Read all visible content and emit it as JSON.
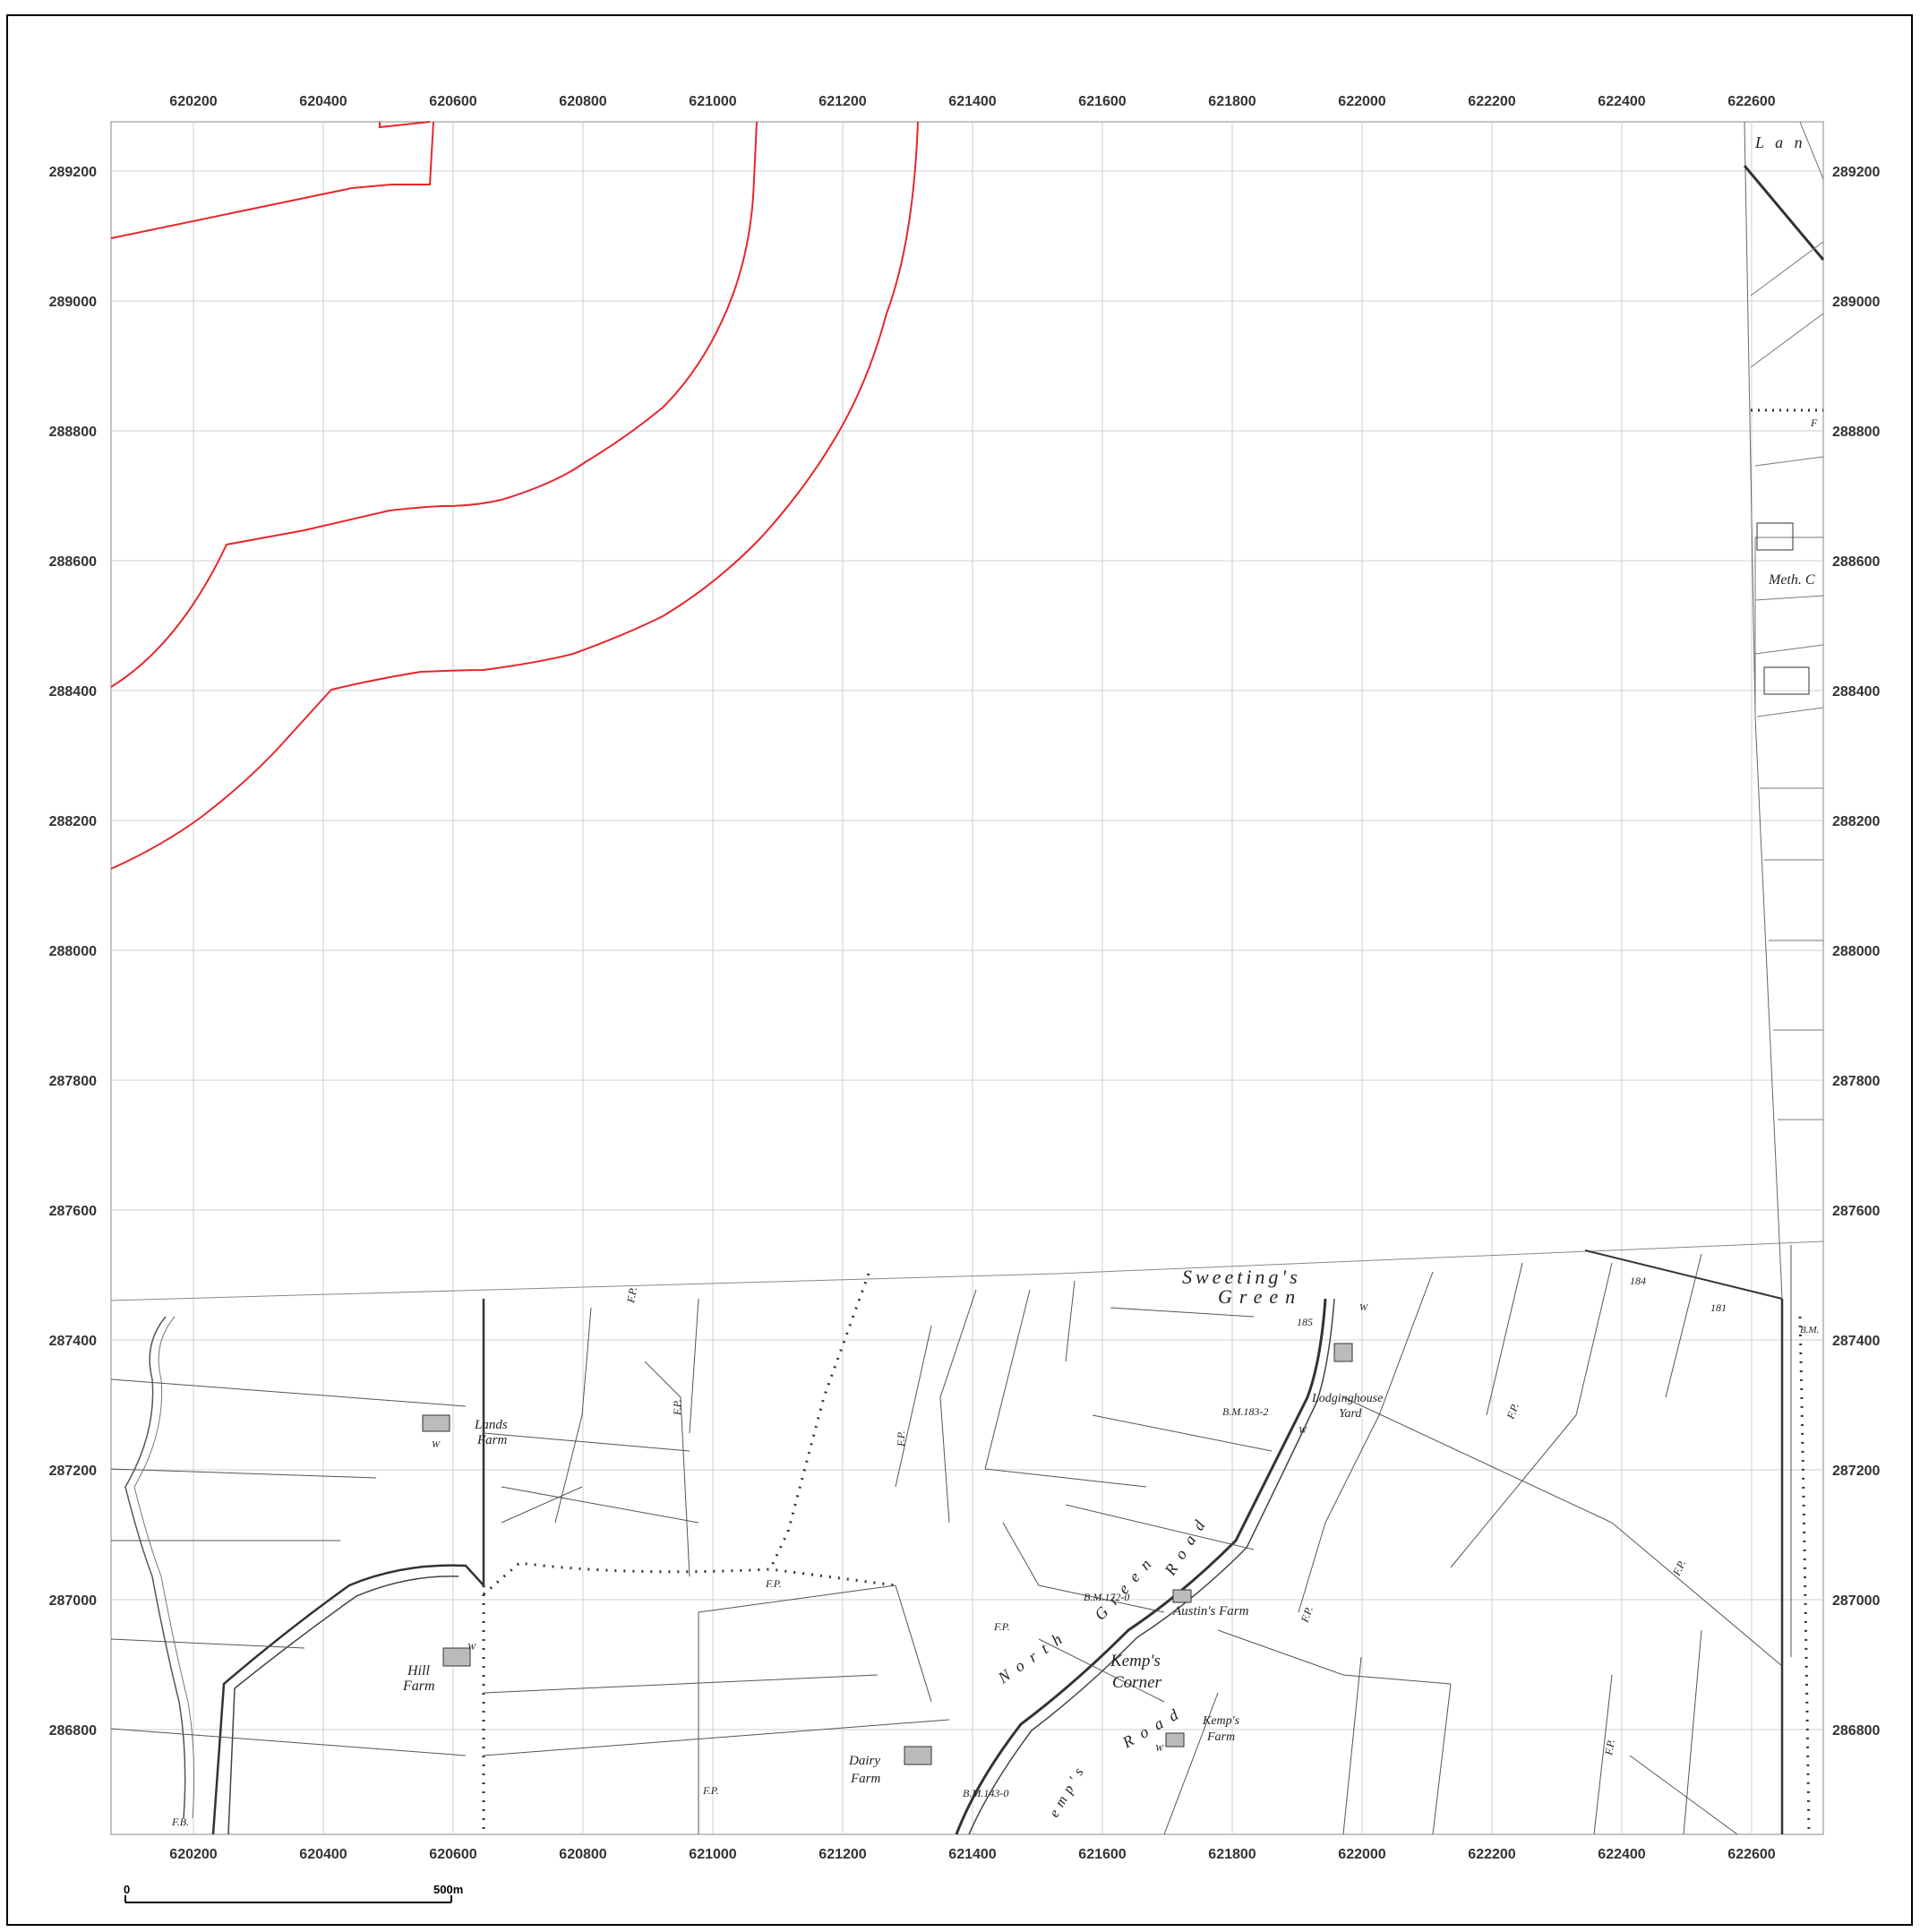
{
  "map": {
    "grid": {
      "eastings": [
        "620200",
        "620400",
        "620600",
        "620800",
        "621000",
        "621200",
        "621400",
        "621600",
        "621800",
        "622000",
        "622200",
        "622400",
        "622600"
      ],
      "northings": [
        "289200",
        "289000",
        "288800",
        "288600",
        "288400",
        "288200",
        "288000",
        "287800",
        "287600",
        "287400",
        "287200",
        "287000",
        "286800"
      ]
    },
    "scale_bar": {
      "start_label": "0",
      "end_label": "500m"
    },
    "place_labels": [
      "Sweeting's",
      "Green",
      "185",
      "184",
      "181",
      "Lodginghouse",
      "Yard",
      "B.M.183-2",
      "Lands",
      "Farm",
      "Hill",
      "Farm",
      "Dairy",
      "Farm",
      "B.M.143-0",
      "B.M.172-0",
      "Austin's Farm",
      "Kemp's",
      "Corner",
      "Kemp's",
      "Farm",
      "North",
      "Green",
      "Road",
      "Road",
      "F.P.",
      "F.P.",
      "F.P.",
      "F.P.",
      "F.P.",
      "F.P.",
      "F.P.",
      "F.P.",
      "F.P.",
      "F.P.",
      "F.B.",
      "L a n",
      "Meth. C",
      "B.M.",
      "W",
      "W",
      "W",
      "W",
      "W",
      "F",
      "emp's"
    ],
    "colors": {
      "boundary": "#e8262b",
      "grid": "#c8c8c8",
      "frame": "#000000",
      "road": "#333333"
    }
  }
}
